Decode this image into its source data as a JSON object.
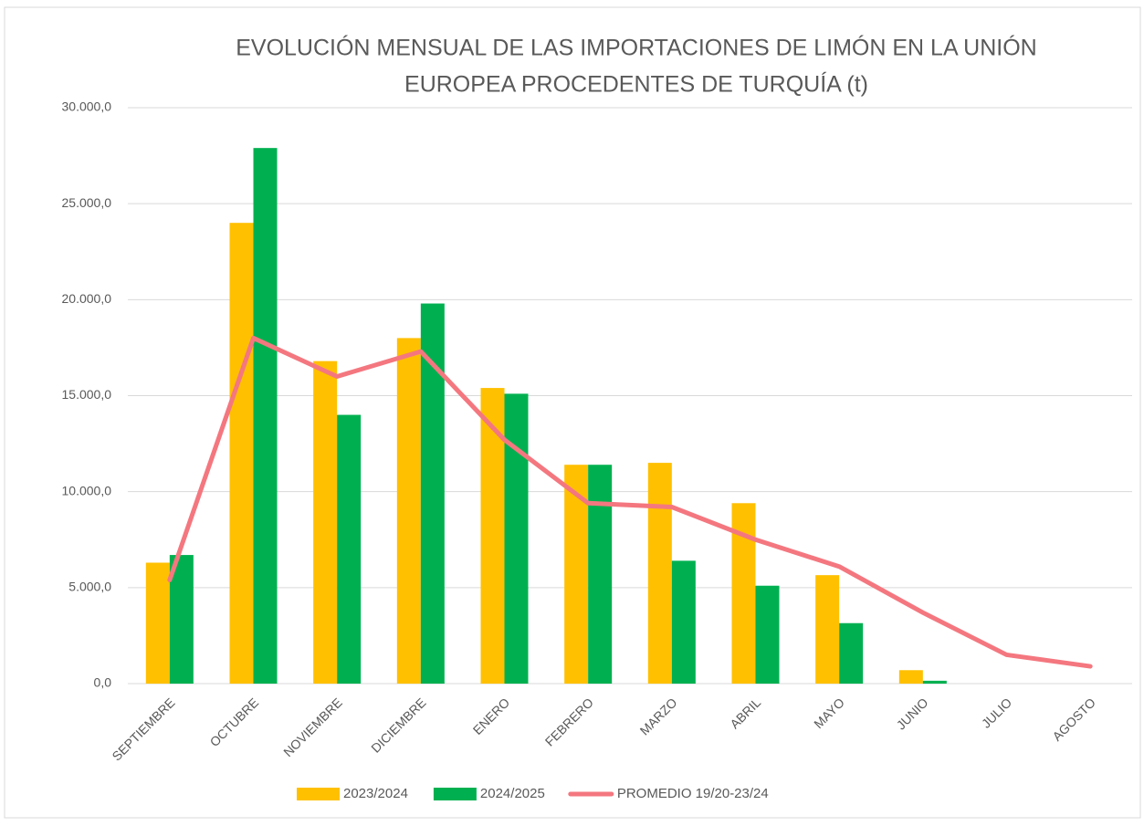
{
  "chart_data": {
    "type": "bar+line",
    "title": [
      "EVOLUCIÓN MENSUAL DE LAS IMPORTACIONES DE LIMÓN EN LA UNIÓN",
      "EUROPEA PROCEDENTES DE TURQUÍA (t)"
    ],
    "categories": [
      "SEPTIEMBRE",
      "OCTUBRE",
      "NOVIEMBRE",
      "DICIEMBRE",
      "ENERO",
      "FEBRERO",
      "MARZO",
      "ABRIL",
      "MAYO",
      "JUNIO",
      "JULIO",
      "AGOSTO"
    ],
    "series": [
      {
        "name": "2023/2024",
        "type": "bar",
        "color": "#ffc000",
        "values": [
          6300,
          24000,
          16800,
          18000,
          15400,
          11400,
          11500,
          9400,
          5650,
          700,
          0,
          0
        ]
      },
      {
        "name": "2024/2025",
        "type": "bar",
        "color": "#00b050",
        "values": [
          6700,
          27900,
          14000,
          19800,
          15100,
          11400,
          6400,
          5100,
          3150,
          150,
          null,
          null
        ]
      },
      {
        "name": "PROMEDIO 19/20-23/24",
        "type": "line",
        "color": "#f4777f",
        "values": [
          5400,
          18000,
          16000,
          17300,
          12700,
          9400,
          9200,
          7500,
          6100,
          3700,
          1500,
          900
        ]
      }
    ],
    "ylim": [
      0,
      30000
    ],
    "yticks": [
      {
        "value": 0,
        "label": "0,0"
      },
      {
        "value": 5000,
        "label": "5.000,0"
      },
      {
        "value": 10000,
        "label": "10.000,0"
      },
      {
        "value": 15000,
        "label": "15.000,0"
      },
      {
        "value": 20000,
        "label": "20.000,0"
      },
      {
        "value": 25000,
        "label": "25.000,0"
      },
      {
        "value": 30000,
        "label": "30.000,0"
      }
    ],
    "grid": true,
    "legend": "bottom"
  }
}
